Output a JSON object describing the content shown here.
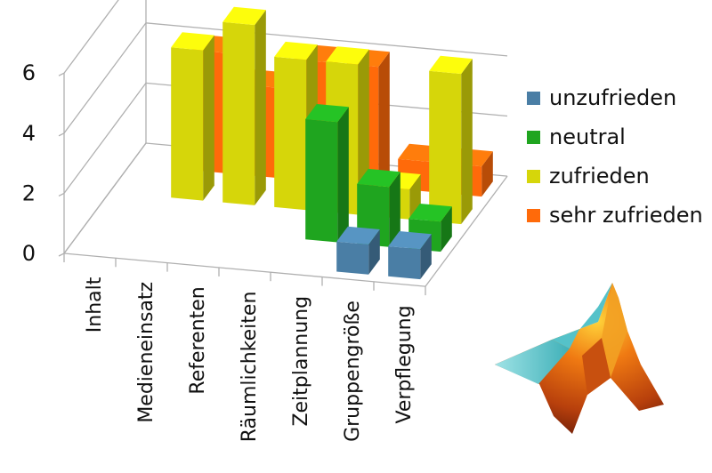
{
  "chart_data": {
    "type": "bar",
    "categories": [
      "Inhalt",
      "Medieneinsatz",
      "Referenten",
      "Räumlichkeiten",
      "Zeitplannung",
      "Gruppengröße",
      "Verpflegung"
    ],
    "series": [
      {
        "name": "unzufrieden",
        "color": "#4a7ea5",
        "values": [
          0,
          0,
          0,
          0,
          0,
          1,
          1
        ]
      },
      {
        "name": "neutral",
        "color": "#1fa51f",
        "values": [
          0,
          0,
          0,
          0,
          4,
          2,
          1
        ]
      },
      {
        "name": "zufrieden",
        "color": "#d6d60a",
        "values": [
          0,
          5,
          6,
          5,
          5,
          1,
          5
        ]
      },
      {
        "name": "sehr zufrieden",
        "color": "#ff6a0a",
        "values": [
          0,
          4,
          3,
          4,
          4,
          1,
          1
        ]
      }
    ],
    "yticks": [
      0,
      2,
      4,
      6
    ],
    "ylim": [
      0,
      6
    ],
    "legend_position": "right",
    "grid": true
  },
  "logo_icon": "matlab-membrane-logo-icon"
}
